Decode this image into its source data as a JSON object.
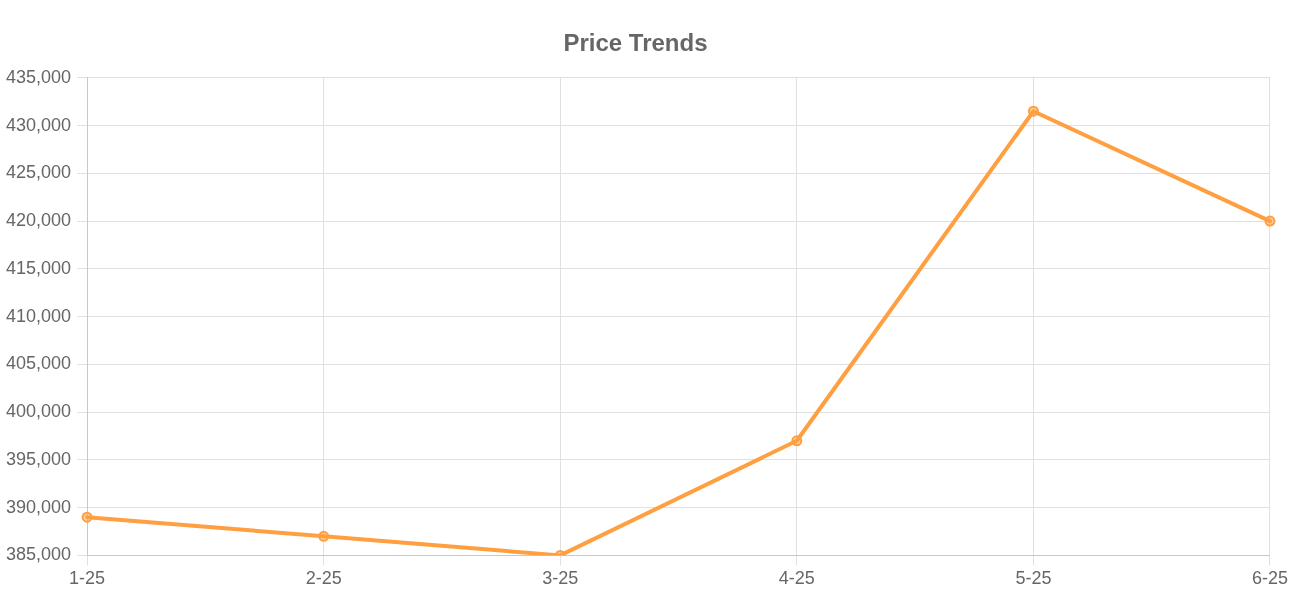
{
  "chart_data": {
    "type": "line",
    "title": "Price Trends",
    "categories": [
      "1-25",
      "2-25",
      "3-25",
      "4-25",
      "5-25",
      "6-25"
    ],
    "series": [
      {
        "color": "#ff9f40",
        "values": [
          389000,
          387000,
          385000,
          397000,
          431500,
          420000
        ]
      }
    ],
    "ylim": [
      385000,
      435000
    ],
    "yticks": [
      {
        "value": 385000,
        "label": "385,000"
      },
      {
        "value": 390000,
        "label": "390,000"
      },
      {
        "value": 395000,
        "label": "395,000"
      },
      {
        "value": 400000,
        "label": "400,000"
      },
      {
        "value": 405000,
        "label": "405,000"
      },
      {
        "value": 410000,
        "label": "410,000"
      },
      {
        "value": 415000,
        "label": "415,000"
      },
      {
        "value": 420000,
        "label": "420,000"
      },
      {
        "value": 425000,
        "label": "425,000"
      },
      {
        "value": 430000,
        "label": "430,000"
      },
      {
        "value": 435000,
        "label": "435,000"
      }
    ],
    "grid": true,
    "legend": false,
    "marker": "circle",
    "line_style": "solid"
  }
}
